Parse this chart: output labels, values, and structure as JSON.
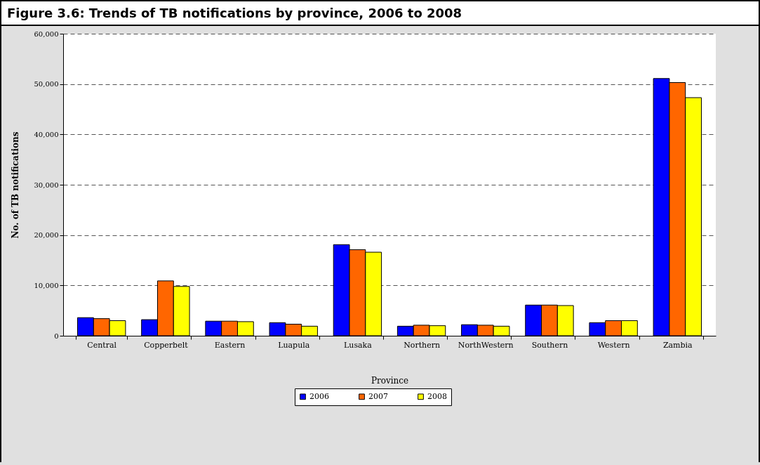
{
  "chart_data": {
    "type": "bar",
    "title": "Figure 3.6: Trends of TB notifications by province, 2006 to 2008",
    "xlabel": "Province",
    "ylabel": "No. of TB notifications",
    "categories": [
      "Central",
      "Copperbelt",
      "Eastern",
      "Luapula",
      "Lusaka",
      "Northern",
      "NorthWestern",
      "Southern",
      "Western",
      "Zambia"
    ],
    "series": [
      {
        "name": "2006",
        "color": "#0000ff",
        "values": [
          3600,
          3200,
          2900,
          2600,
          18100,
          1900,
          2200,
          6100,
          2600,
          51100
        ]
      },
      {
        "name": "2007",
        "color": "#ff6600",
        "values": [
          3400,
          10900,
          2900,
          2300,
          17100,
          2100,
          2100,
          6100,
          3000,
          50300
        ]
      },
      {
        "name": "2008",
        "color": "#ffff00",
        "values": [
          3000,
          9800,
          2800,
          1900,
          16600,
          2000,
          1900,
          6000,
          3000,
          47300
        ]
      }
    ],
    "ylim": [
      0,
      60000
    ],
    "yticks": [
      0,
      {
        "value": 10000,
        "label": "10,000"
      },
      {
        "value": 20000,
        "label": "20,000"
      },
      {
        "value": 30000,
        "label": "30,000"
      },
      {
        "value": 40000,
        "label": "40,000"
      },
      {
        "value": 50000,
        "label": "50,000"
      },
      {
        "value": 60000,
        "label": "60,000"
      }
    ],
    "grid": "y",
    "legend": "bottom"
  }
}
